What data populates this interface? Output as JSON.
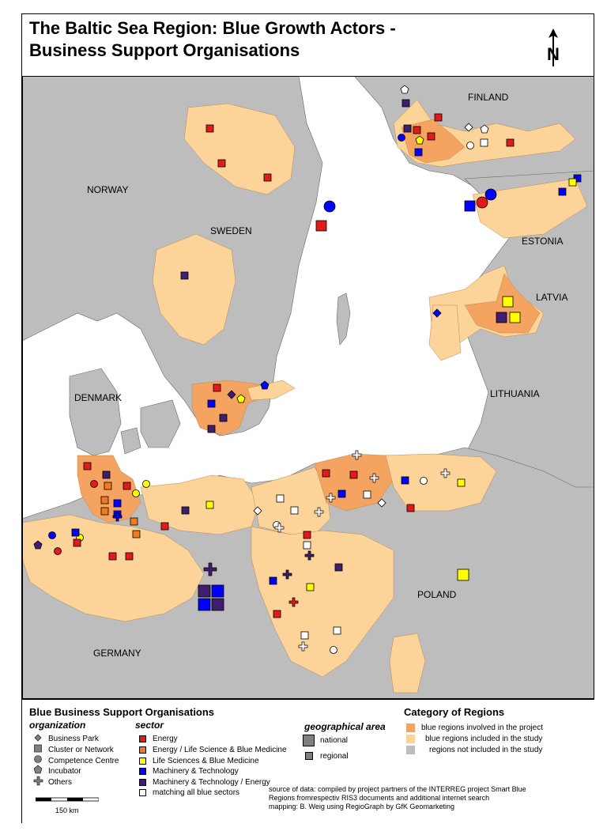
{
  "title_line1": "The Baltic Sea Region: Blue Growth Actors -",
  "title_line2": "Business Support Organisations",
  "north_label": "N",
  "countries": {
    "finland": "FINLAND",
    "norway": "NORWAY",
    "sweden": "SWEDEN",
    "estonia": "ESTONIA",
    "latvia": "LATVIA",
    "denmark": "DENMARK",
    "lithuania": "LITHUANIA",
    "poland": "POLAND",
    "germany": "GERMANY"
  },
  "legend": {
    "heading": "Blue Business Support Organisations",
    "organization_heading": "organization",
    "organization_items": [
      "Business Park",
      "Cluster or Network",
      "Competence Centre",
      "Incubator",
      "Others"
    ],
    "sector_heading": "sector",
    "sector_items": [
      {
        "label": "Energy",
        "color": "#e31a1c"
      },
      {
        "label": "Energy / Life Science & Blue Medicine",
        "color": "#f47a20"
      },
      {
        "label": "Life Sciences & Blue Medicine",
        "color": "#ffff00"
      },
      {
        "label": "Machinery & Technology",
        "color": "#0000ff"
      },
      {
        "label": "Machinery & Technology / Energy",
        "color": "#3f1e6e"
      },
      {
        "label": "matching all blue sectors",
        "color": "#ffffff"
      }
    ],
    "geo_heading": "geographical area",
    "geo_items": [
      "national",
      "regional"
    ],
    "category_heading": "Category of Regions",
    "category_items": [
      {
        "label": "blue regions involved in the project",
        "color": "#f4a460"
      },
      {
        "label": "blue regions included in the study",
        "color": "#fcd49a"
      },
      {
        "label": "regions not included in the study",
        "color": "#bdbdbd"
      }
    ]
  },
  "scale_label": "150 km",
  "source_lines": [
    "source of data: compiled by project partners of the INTERREG project Smart Blue",
    "Regions fromrespectiv RIS3 documents and additional internet search",
    "mapping: B. Weig using RegioGraph by GfK Geomarketing"
  ],
  "colors": {
    "sea": "#ffffff",
    "land_other": "#bdbdbd",
    "region_study": "#fcd49a",
    "region_project": "#f4a460"
  }
}
